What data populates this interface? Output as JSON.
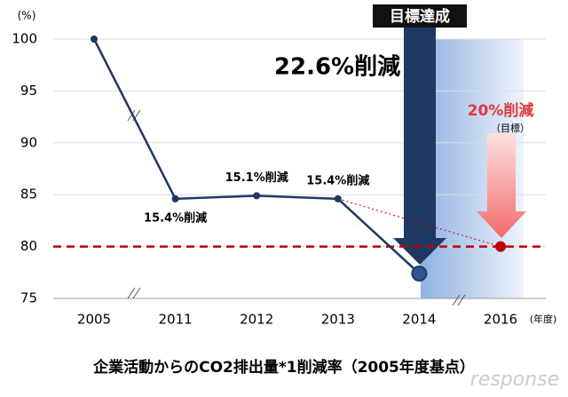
{
  "chart_data": {
    "type": "line",
    "title": "企業活動からのCO2排出量*1削減率（2005年度基点）",
    "y_label": "(%)",
    "x_label": "(年度)",
    "categories": [
      "2005",
      "2011",
      "2012",
      "2013",
      "2014",
      "2016"
    ],
    "values": [
      100,
      84.6,
      84.9,
      84.6,
      77.4,
      null
    ],
    "color": "#1f3864",
    "target": 80,
    "target_color": "#c00000",
    "ylim": [
      75,
      100
    ],
    "yticks": [
      75,
      80,
      85,
      90,
      95,
      100
    ],
    "grid": true,
    "point_labels": [
      null,
      "15.4%削減",
      "15.1%削減",
      "15.4%削減",
      null,
      null
    ],
    "annotations": {
      "achieved": "目標達成",
      "reduction": "22.6%削減",
      "goal": "20%削減",
      "goal_note": "（目標）"
    },
    "watermark": "response"
  }
}
